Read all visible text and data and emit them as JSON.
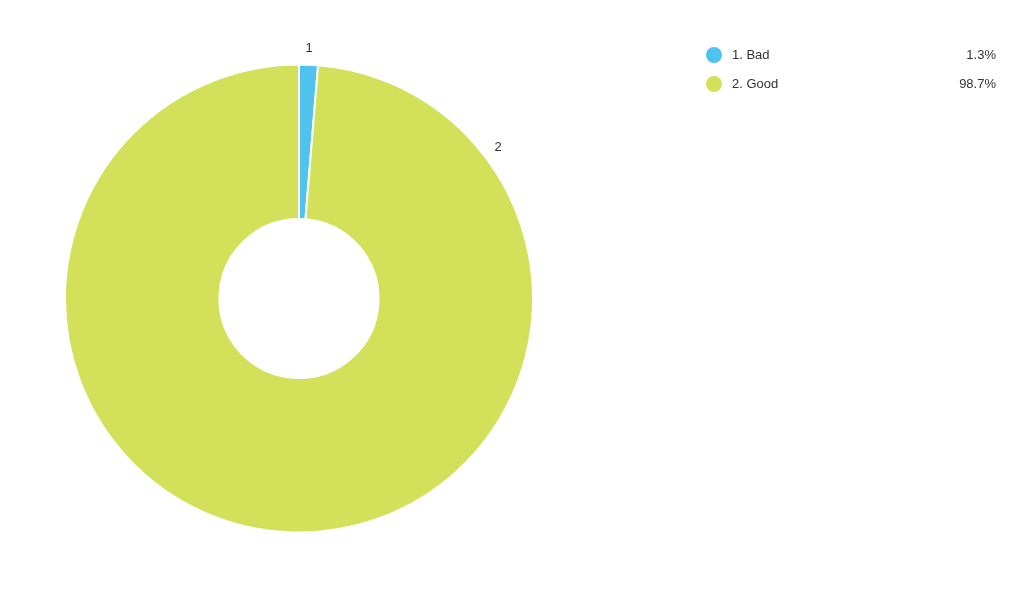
{
  "chart_data": {
    "type": "donut",
    "categories": [
      "1. Bad",
      "2. Good"
    ],
    "values": [
      1.3,
      98.7
    ],
    "colors": [
      "#4fc3ee",
      "#d3e15a"
    ],
    "value_labels": [
      "1.3%",
      "98.7%"
    ],
    "legend": "top right",
    "annotations": [
      {
        "text": "1",
        "x": "1. Bad"
      },
      {
        "text": "2",
        "x": "2. Good"
      }
    ]
  }
}
